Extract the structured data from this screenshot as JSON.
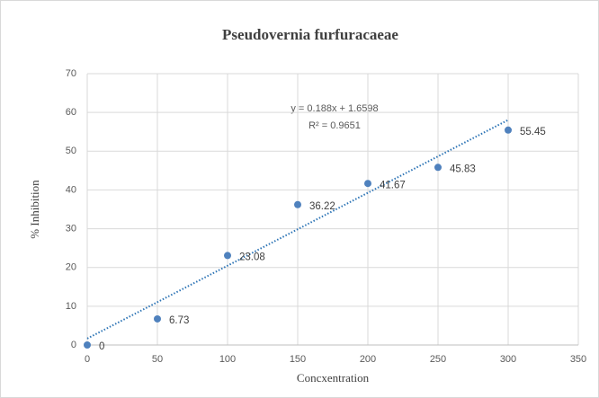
{
  "chart_data": {
    "type": "scatter",
    "title": "Pseudovernia  furfuracaeae",
    "x_label": "Concxentration",
    "y_label": "% Inhibition",
    "series": [
      {
        "x": [
          0,
          50,
          100,
          150,
          200,
          250,
          300
        ],
        "values": [
          0,
          6.73,
          23.08,
          36.22,
          41.67,
          45.83,
          55.45
        ],
        "color": "#4f81bd"
      }
    ],
    "trendline": {
      "slope": 0.188,
      "intercept": 1.6598,
      "color": "#2e75b6"
    },
    "annotations": [
      "y = 0.188x + 1.6598",
      "R² = 0.9651"
    ],
    "xlim": [
      0,
      350
    ],
    "xticks": [
      0,
      50,
      100,
      150,
      200,
      250,
      300,
      350
    ],
    "ylim": [
      0,
      70
    ],
    "yticks": [
      0,
      10,
      20,
      30,
      40,
      50,
      60,
      70
    ],
    "grid": true
  }
}
